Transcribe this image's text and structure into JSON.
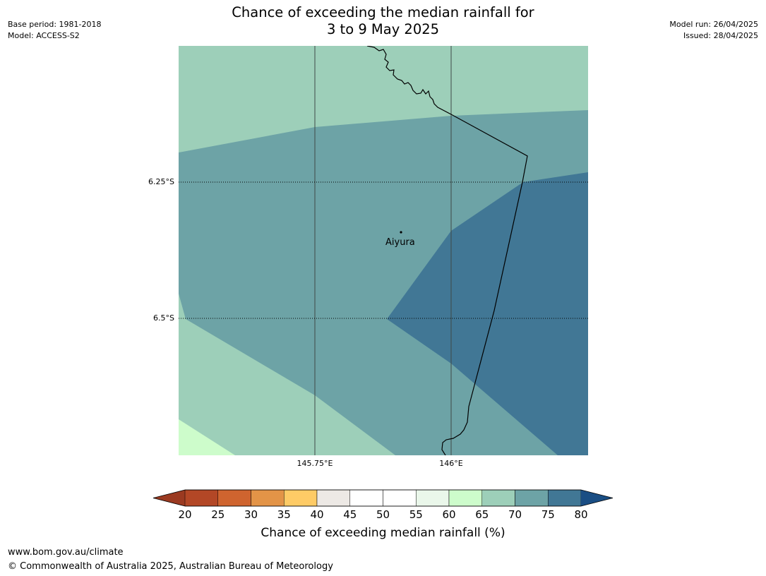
{
  "title": {
    "line1": "Chance of exceeding the median rainfall for",
    "line2": "3 to 9 May 2025"
  },
  "meta": {
    "base_period": "Base period: 1981-2018",
    "model": "Model: ACCESS-S2",
    "model_run": "Model run: 26/04/2025",
    "issued": "Issued: 28/04/2025"
  },
  "map": {
    "gridlines": {
      "latitudes": [
        "6.25°S",
        "6.5°S"
      ],
      "longitudes": [
        "145.75°E",
        "146°E"
      ]
    },
    "place": {
      "name": "Aiyura"
    }
  },
  "colorbar": {
    "ticks": [
      "20",
      "25",
      "30",
      "35",
      "40",
      "45",
      "50",
      "55",
      "60",
      "65",
      "70",
      "75",
      "80"
    ],
    "colors": [
      "#b34726",
      "#cf642f",
      "#e39447",
      "#fecb66",
      "#ede9e5",
      "#ffffff",
      "#ffffff",
      "#eaf7ea",
      "#cdfccb",
      "#9dcfb9",
      "#6da3a6",
      "#417795"
    ],
    "under_color": "#9b3a21",
    "over_color": "#1a4e84",
    "label": "Chance of exceeding median rainfall (%)"
  },
  "footer": {
    "url": "www.bom.gov.au/climate",
    "copyright": "© Commonwealth of Australia 2025, Australian Bureau of Meteorology"
  }
}
